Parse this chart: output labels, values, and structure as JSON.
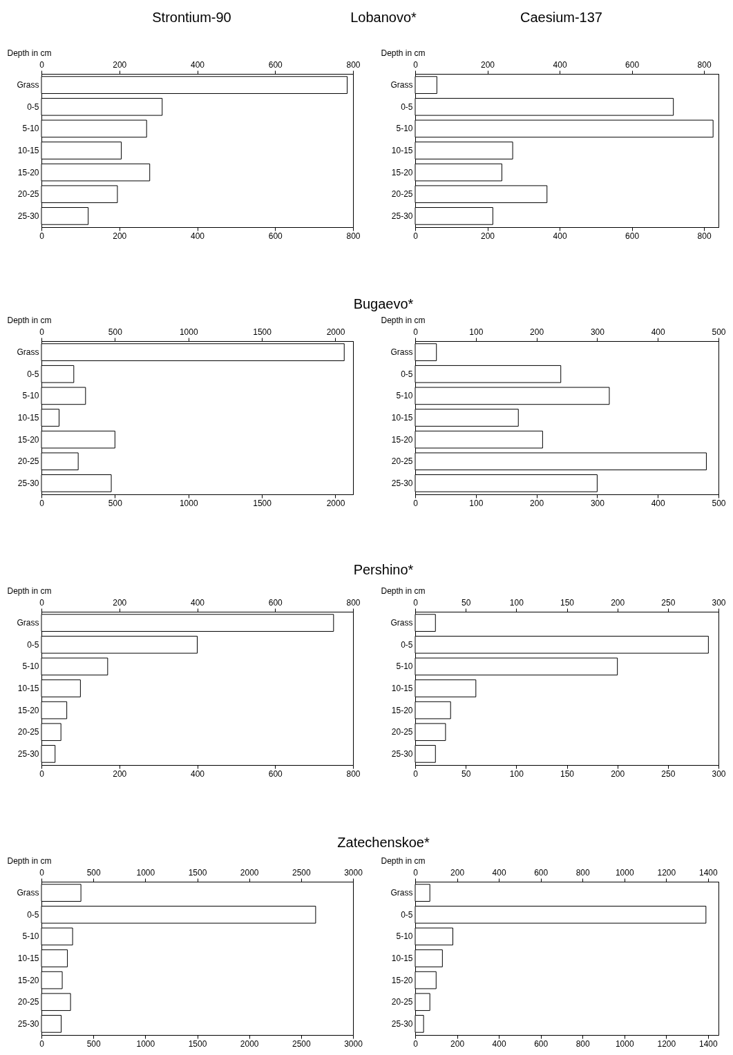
{
  "chart_data": [
    {
      "type": "bar",
      "orientation": "horizontal",
      "title": "Strontium-90",
      "subtitle": "Lobanovo*",
      "ylabel": "Depth in cm",
      "categories": [
        "Grass",
        "0-5",
        "5-10",
        "10-15",
        "15-20",
        "20-25",
        "25-30"
      ],
      "values": [
        785,
        310,
        270,
        205,
        278,
        195,
        120
      ],
      "color": "#ffffff",
      "xlim": [
        0,
        800
      ],
      "xticks": [
        0,
        200,
        400,
        600,
        800
      ],
      "x2lim": [
        0,
        800
      ],
      "x2ticks": [
        0,
        200,
        400,
        600,
        800
      ]
    },
    {
      "type": "bar",
      "orientation": "horizontal",
      "title": "Caesium-137",
      "ylabel": "Depth in cm",
      "categories": [
        "Grass",
        "0-5",
        "5-10",
        "10-15",
        "15-20",
        "20-25",
        "25-30"
      ],
      "values": [
        60,
        715,
        825,
        270,
        240,
        365,
        215
      ],
      "color": "#ffffff",
      "xlim": [
        0,
        840
      ],
      "xticks": [
        0,
        200,
        400,
        600,
        800
      ],
      "x2lim": [
        0,
        840
      ],
      "x2ticks": [
        0,
        200,
        400,
        600,
        800
      ]
    },
    {
      "type": "bar",
      "orientation": "horizontal",
      "subtitle": "Bugaevo*",
      "ylabel": "Depth in cm",
      "categories": [
        "Grass",
        "0-5",
        "5-10",
        "10-15",
        "15-20",
        "20-25",
        "25-30"
      ],
      "values": [
        2060,
        220,
        300,
        120,
        500,
        250,
        475
      ],
      "color": "#ffffff",
      "xlim": [
        0,
        2120
      ],
      "xticks": [
        0,
        500,
        1000,
        1500,
        2000
      ],
      "x2lim": [
        0,
        2120
      ],
      "x2ticks": [
        0,
        500,
        1000,
        1500,
        2000
      ]
    },
    {
      "type": "bar",
      "orientation": "horizontal",
      "ylabel": "Depth in cm",
      "categories": [
        "Grass",
        "0-5",
        "5-10",
        "10-15",
        "15-20",
        "20-25",
        "25-30"
      ],
      "values": [
        35,
        240,
        320,
        170,
        210,
        480,
        300
      ],
      "color": "#ffffff",
      "xlim": [
        0,
        500
      ],
      "xticks": [
        0,
        100,
        200,
        300,
        400,
        500
      ],
      "x2lim": [
        0,
        500
      ],
      "x2ticks": [
        0,
        100,
        200,
        300,
        400,
        500
      ]
    },
    {
      "type": "bar",
      "orientation": "horizontal",
      "subtitle": "Pershino*",
      "ylabel": "Depth in cm",
      "categories": [
        "Grass",
        "0-5",
        "5-10",
        "10-15",
        "15-20",
        "20-25",
        "25-30"
      ],
      "values": [
        750,
        400,
        170,
        100,
        65,
        50,
        35
      ],
      "color": "#ffffff",
      "xlim": [
        0,
        800
      ],
      "xticks": [
        0,
        200,
        400,
        600,
        800
      ],
      "x2lim": [
        0,
        800
      ],
      "x2ticks": [
        0,
        200,
        400,
        600,
        800
      ]
    },
    {
      "type": "bar",
      "orientation": "horizontal",
      "ylabel": "Depth in cm",
      "categories": [
        "Grass",
        "0-5",
        "5-10",
        "10-15",
        "15-20",
        "20-25",
        "25-30"
      ],
      "values": [
        20,
        290,
        200,
        60,
        35,
        30,
        20
      ],
      "color": "#ffffff",
      "xlim": [
        0,
        300
      ],
      "xticks": [
        0,
        50,
        100,
        150,
        200,
        250,
        300
      ],
      "x2lim": [
        0,
        300
      ],
      "x2ticks": [
        0,
        50,
        100,
        150,
        200,
        250,
        300
      ]
    },
    {
      "type": "bar",
      "orientation": "horizontal",
      "subtitle": "Zatechenskoe*",
      "ylabel": "Depth in cm",
      "categories": [
        "Grass",
        "0-5",
        "5-10",
        "10-15",
        "15-20",
        "20-25",
        "25-30"
      ],
      "values": [
        380,
        2640,
        300,
        250,
        200,
        280,
        190
      ],
      "color": "#ffffff",
      "xlim": [
        0,
        3000
      ],
      "xticks": [
        0,
        500,
        1000,
        1500,
        2000,
        2500,
        3000
      ],
      "x2lim": [
        0,
        3000
      ],
      "x2ticks": [
        0,
        500,
        1000,
        1500,
        2000,
        2500,
        3000
      ]
    },
    {
      "type": "bar",
      "orientation": "horizontal",
      "ylabel": "Depth in cm",
      "categories": [
        "Grass",
        "0-5",
        "5-10",
        "10-15",
        "15-20",
        "20-25",
        "25-30"
      ],
      "values": [
        70,
        1390,
        180,
        130,
        100,
        70,
        40
      ],
      "color": "#ffffff",
      "xlim": [
        0,
        1450
      ],
      "xticks": [
        0,
        200,
        400,
        600,
        800,
        1000,
        1200,
        1400
      ],
      "x2lim": [
        0,
        1450
      ],
      "x2ticks": [
        0,
        200,
        400,
        600,
        800,
        1000,
        1200,
        1400
      ]
    }
  ]
}
